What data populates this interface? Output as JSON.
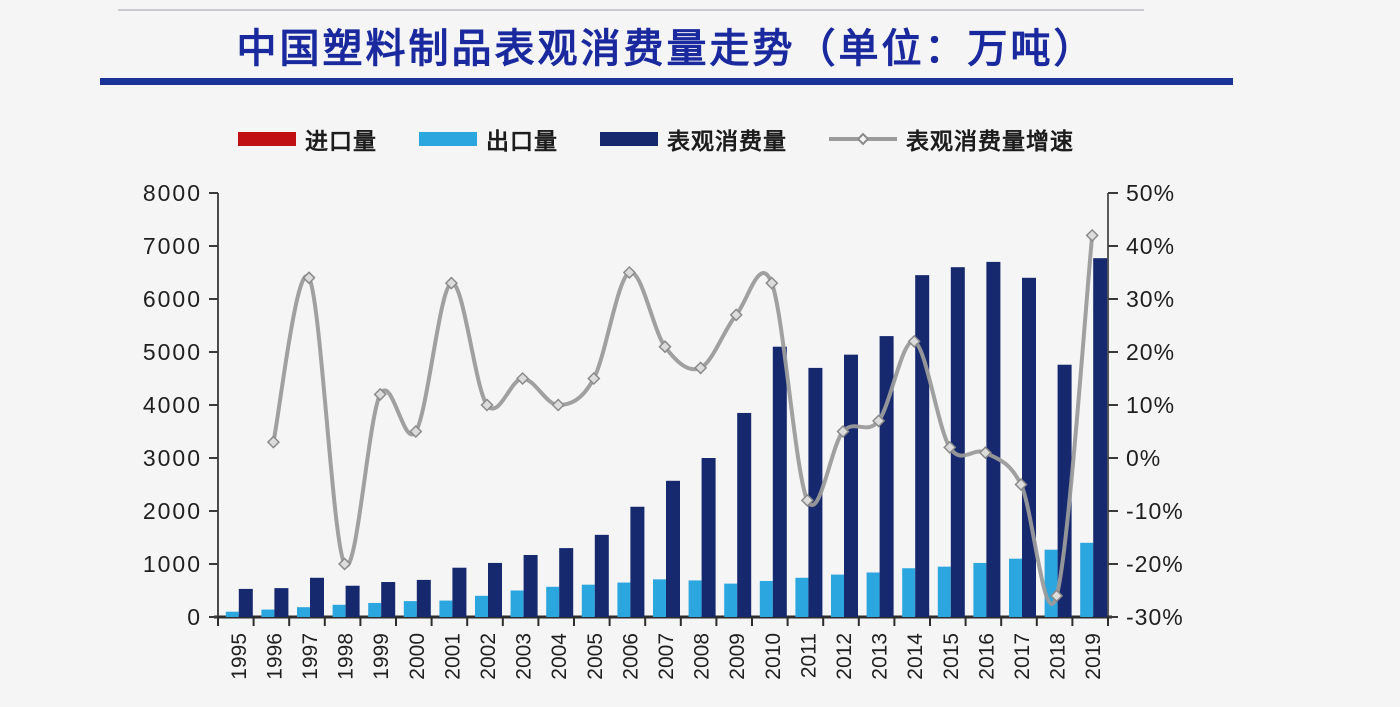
{
  "title": {
    "text": "中国塑料制品表观消费量走势（单位：万吨）",
    "color": "#1a2a9e",
    "rule_color": "#1b3399"
  },
  "legend": {
    "items": [
      {
        "label": "进口量",
        "color": "#c11014",
        "type": "bar-swatch"
      },
      {
        "label": "出口量",
        "color": "#2ba6de",
        "type": "bar-swatch"
      },
      {
        "label": "表观消费量",
        "color": "#16286e",
        "type": "bar-swatch"
      },
      {
        "label": "表观消费量增速",
        "color": "#9b9b9b",
        "type": "line-swatch"
      }
    ]
  },
  "chart_data": {
    "type": "bar+line combo, dual y-axis",
    "title": "中国塑料制品表观消费量走势（单位：万吨）",
    "unit": "万吨",
    "categories": [
      "1995",
      "1996",
      "1997",
      "1998",
      "1999",
      "2000",
      "2001",
      "2002",
      "2003",
      "2004",
      "2005",
      "2006",
      "2007",
      "2008",
      "2009",
      "2010",
      "2011",
      "2012",
      "2013",
      "2014",
      "2015",
      "2016",
      "2017",
      "2018",
      "2019"
    ],
    "series": [
      {
        "name": "进口量",
        "type": "bar",
        "axis": "left",
        "color": "#c11014",
        "values": [],
        "note": "legend entry only — import bars are not visibly rendered in the plot"
      },
      {
        "name": "出口量",
        "type": "bar",
        "axis": "left",
        "color": "#2ba6de",
        "values": [
          100,
          140,
          185,
          230,
          265,
          300,
          310,
          400,
          500,
          570,
          610,
          650,
          710,
          690,
          630,
          680,
          740,
          800,
          840,
          920,
          950,
          1020,
          1100,
          1270,
          1400
        ]
      },
      {
        "name": "表观消费量",
        "type": "bar",
        "axis": "left",
        "color": "#16286e",
        "values": [
          530,
          545,
          740,
          590,
          660,
          700,
          930,
          1020,
          1170,
          1300,
          1550,
          2080,
          2570,
          3000,
          3850,
          5100,
          4700,
          4950,
          5300,
          6450,
          6600,
          6700,
          6400,
          4760,
          6770
        ]
      },
      {
        "name": "表观消费量增速",
        "type": "line",
        "axis": "right",
        "unit": "%",
        "color": "#9b9b9b",
        "marker": "diamond",
        "values": [
          null,
          3,
          34,
          -20,
          12,
          5,
          33,
          10,
          15,
          10,
          15,
          35,
          21,
          17,
          27,
          33,
          -8,
          5,
          7,
          22,
          2,
          1,
          -5,
          -26,
          42
        ]
      }
    ],
    "left_axis": {
      "min": 0,
      "max": 8000,
      "tick_step": 1000,
      "ticks": [
        "0",
        "1000",
        "2000",
        "3000",
        "4000",
        "5000",
        "6000",
        "7000",
        "8000"
      ]
    },
    "right_axis": {
      "min": -30,
      "max": 50,
      "tick_step": 10,
      "ticks": [
        "-30%",
        "-20%",
        "-10%",
        "0%",
        "10%",
        "20%",
        "30%",
        "40%",
        "50%"
      ]
    },
    "grid": false,
    "legend_position": "top"
  }
}
